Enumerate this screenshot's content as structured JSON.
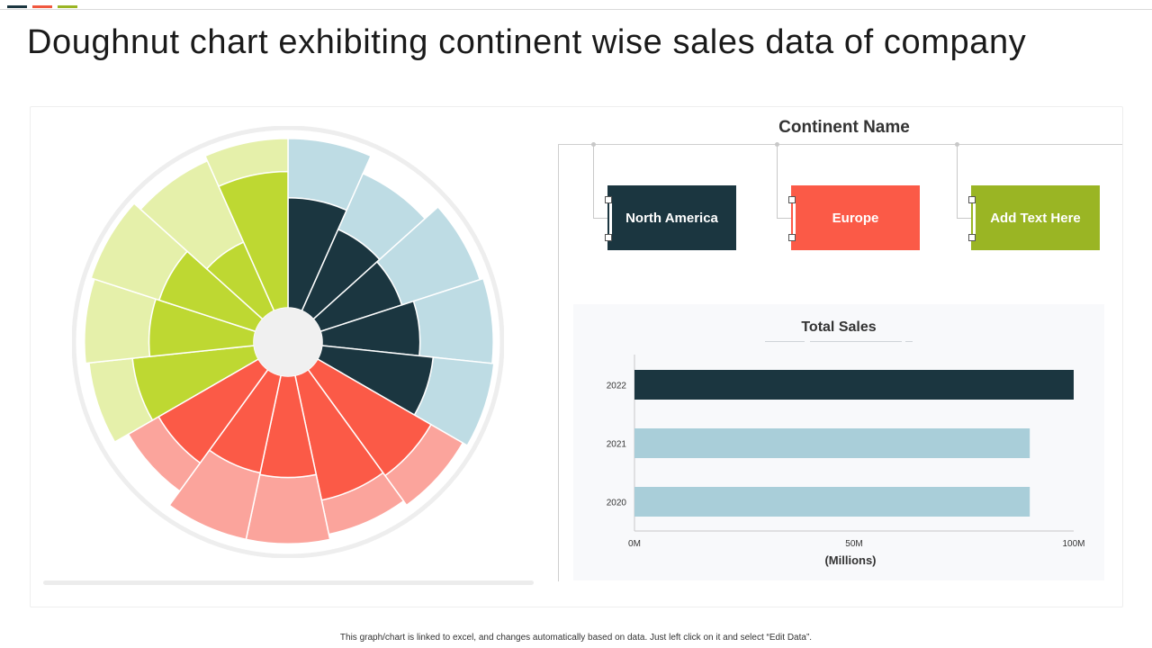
{
  "page": {
    "title": "Doughnut chart exhibiting continent wise sales data of company",
    "footer_note": "This graph/chart is linked to excel, and changes automatically based on data. Just left click on it and select “Edit Data”."
  },
  "colors": {
    "accent_bar": [
      "#1b3640",
      "#f0583f",
      "#9ab524"
    ],
    "north_america": {
      "dark": "#1b3640",
      "light": "#bedce4"
    },
    "europe": {
      "dark": "#fb5a47",
      "light": "#fba49c"
    },
    "other": {
      "dark": "#bed832",
      "light": "#e5f0aa"
    },
    "hole": "#f0f0f0",
    "bar_2022": "#1b3640",
    "bar_other": "#a9ced9"
  },
  "legend": {
    "title": "Continent Name",
    "items": [
      {
        "label": "North America",
        "color": "#1b3640"
      },
      {
        "label": "Europe",
        "color": "#fb5a47"
      },
      {
        "label": "Add  Text Here",
        "color": "#9ab524"
      }
    ]
  },
  "chart_data": [
    {
      "type": "sunburst",
      "title": "",
      "groups": [
        {
          "name": "North America",
          "segments": [
            {
              "inner": 0.63,
              "outer": 0.97
            },
            {
              "inner": 0.51,
              "outer": 0.86
            },
            {
              "inner": 0.49,
              "outer": 0.96
            },
            {
              "inner": 0.56,
              "outer": 0.98
            },
            {
              "inner": 0.64,
              "outer": 0.99
            }
          ]
        },
        {
          "name": "Europe",
          "segments": [
            {
              "inner": 0.75,
              "outer": 0.96
            },
            {
              "inner": 0.73,
              "outer": 0.93
            },
            {
              "inner": 0.58,
              "outer": 0.96
            },
            {
              "inner": 0.57,
              "outer": 0.96
            },
            {
              "inner": 0.66,
              "outer": 0.86
            }
          ]
        },
        {
          "name": "Add  Text Here",
          "segments": [
            {
              "inner": 0.7,
              "outer": 0.95
            },
            {
              "inner": 0.6,
              "outer": 0.97
            },
            {
              "inner": 0.58,
              "outer": 0.99
            },
            {
              "inner": 0.43,
              "outer": 0.94
            },
            {
              "inner": 0.78,
              "outer": 0.97
            }
          ]
        }
      ]
    },
    {
      "type": "bar",
      "orientation": "horizontal",
      "title": "Total Sales",
      "categories": [
        "2022",
        "2021",
        "2020"
      ],
      "values": [
        100,
        90,
        90
      ],
      "xlabel": "(Millions)",
      "ylabel": "",
      "xlim": [
        0,
        100
      ],
      "x_ticks": [
        "0M",
        "50M",
        "100M"
      ],
      "bar_colors": [
        "#1b3640",
        "#a9ced9",
        "#a9ced9"
      ]
    }
  ]
}
